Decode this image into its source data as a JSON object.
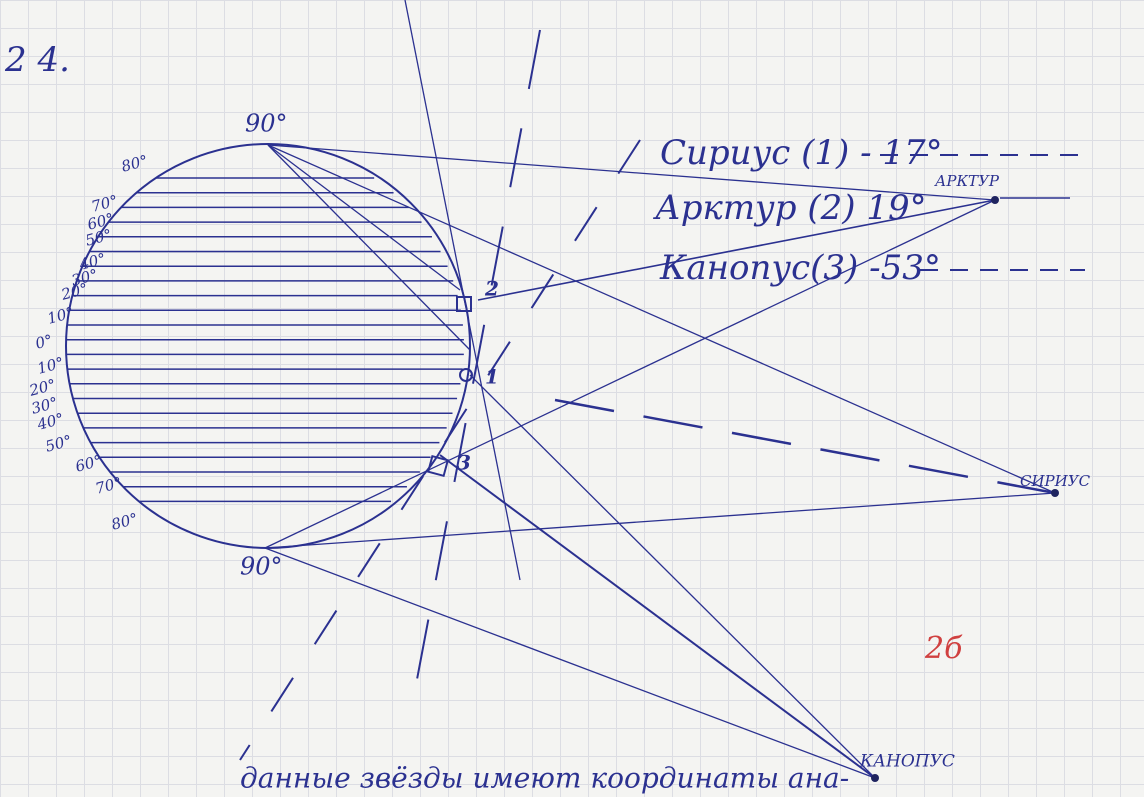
{
  "heading": "2 4.",
  "pole_labels": [
    "90°",
    "90°"
  ],
  "latitude_labels": [
    "80°",
    "70°",
    "60°",
    "50°",
    "40°",
    "30°",
    "20°",
    "10°",
    "0°",
    "10°",
    "20°",
    "30°",
    "40°",
    "50°",
    "60°",
    "70°",
    "80°"
  ],
  "legend": [
    "Сириус (1) - 17°",
    "Арктур (2) 19°",
    "Канопус(3) -53°"
  ],
  "stars": [
    "АРКТУР",
    "СИРИУС",
    "КАНОПУС"
  ],
  "point_labels": [
    "2",
    "1",
    "3"
  ],
  "grade": "2б",
  "footer": "данные звёзды имеют координаты ана-"
}
